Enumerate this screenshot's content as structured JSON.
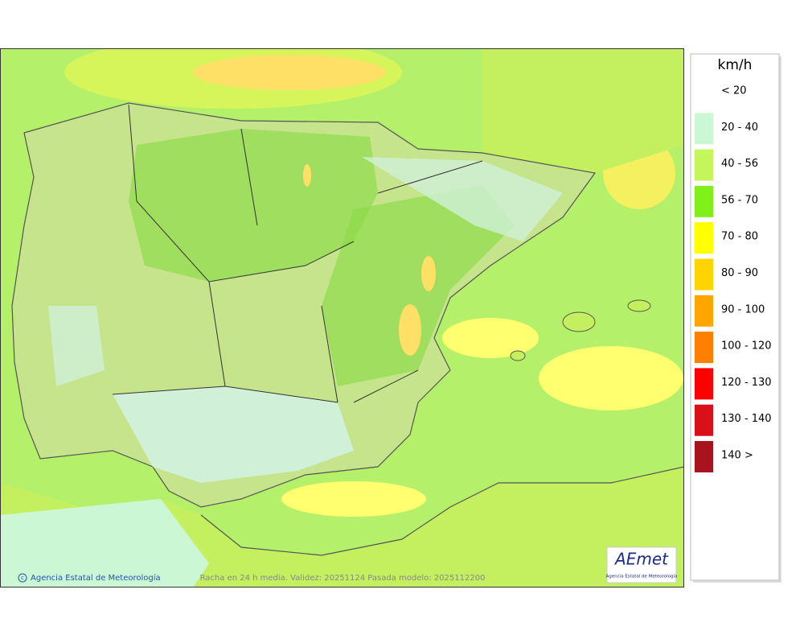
{
  "map": {
    "caption": "Racha en 24 h media. Validez: 20251124 Pasada modelo: 2025112200",
    "copyright": "Agencia Estatal de Meteorología",
    "logo": {
      "name": "AEmet",
      "subtitle": "Agencia Estatal de Meteorología"
    }
  },
  "legend": {
    "unit": "km/h",
    "items": [
      {
        "label": "< 20",
        "color": "#ffffff"
      },
      {
        "label": "20 - 40",
        "color": "#ccf7d4"
      },
      {
        "label": "40 - 56",
        "color": "#c4f55a"
      },
      {
        "label": "56 - 70",
        "color": "#80f01a"
      },
      {
        "label": "70 - 80",
        "color": "#ffff00"
      },
      {
        "label": "80 - 90",
        "color": "#ffd400"
      },
      {
        "label": "90 - 100",
        "color": "#ffa500"
      },
      {
        "label": "100 - 120",
        "color": "#ff8000"
      },
      {
        "label": "120 - 130",
        "color": "#ff0000"
      },
      {
        "label": "130 - 140",
        "color": "#d8101a"
      },
      {
        "label": "140 >",
        "color": "#a8141e"
      }
    ]
  }
}
